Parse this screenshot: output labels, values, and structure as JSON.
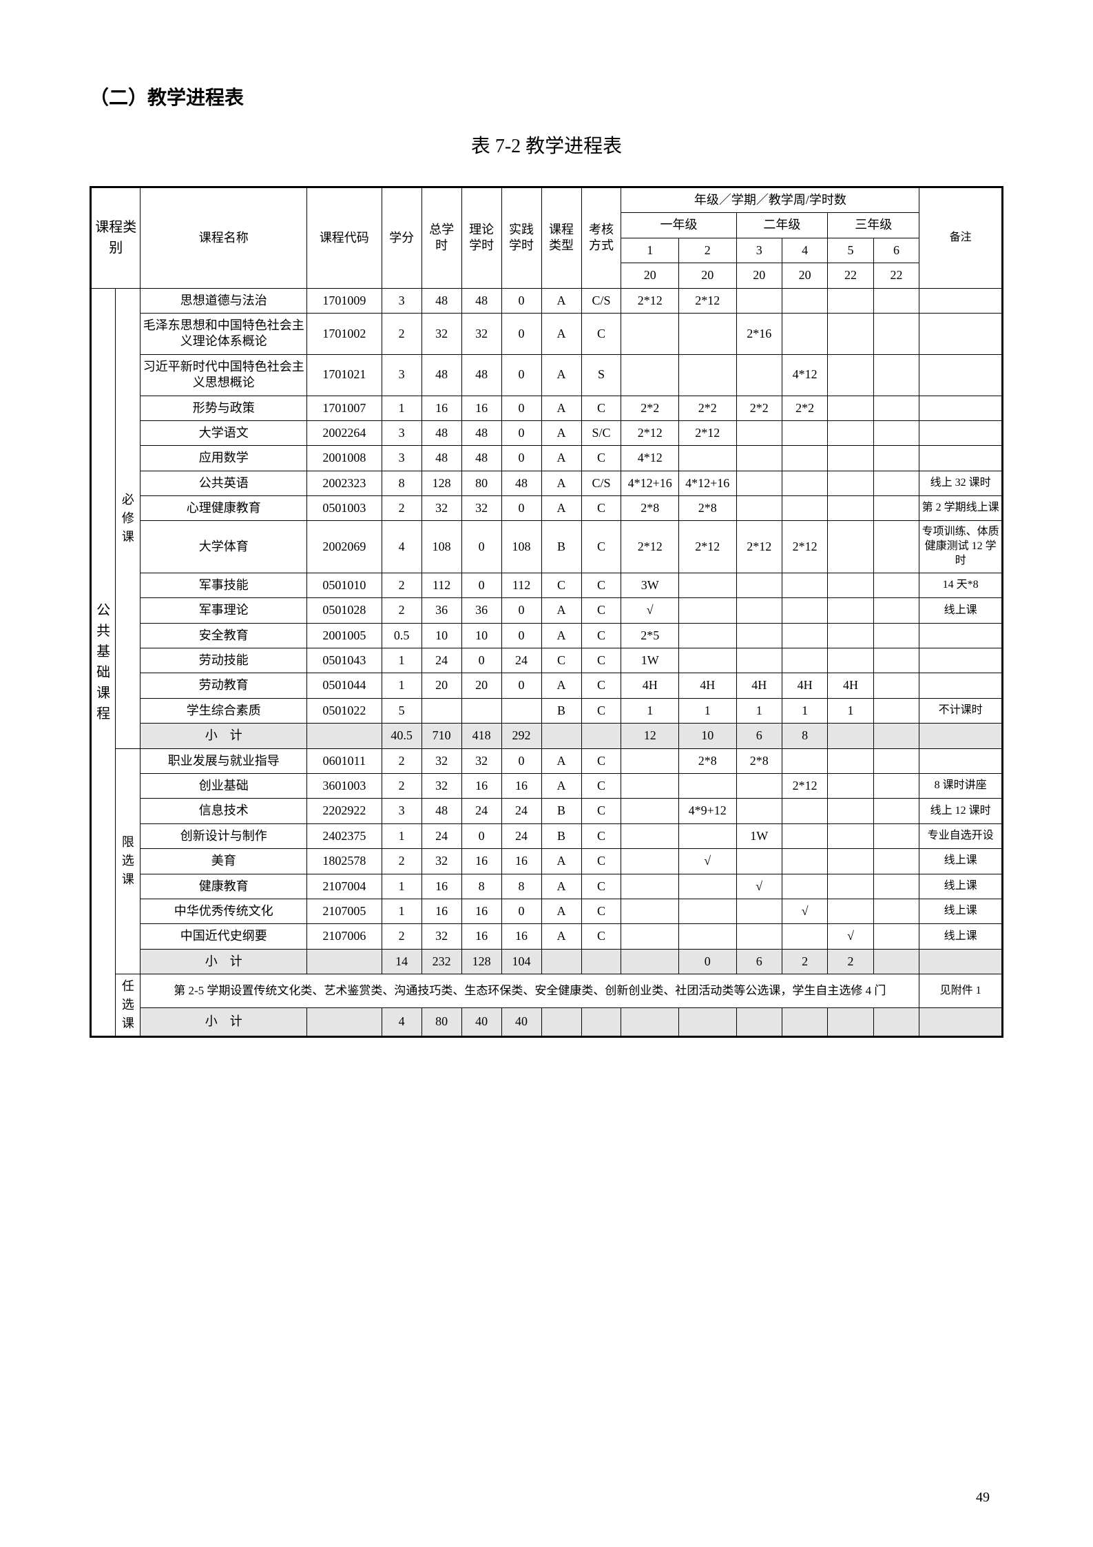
{
  "section_heading": "（二）教学进程表",
  "table_title": "表 7-2 教学进程表",
  "page_number": "49",
  "header": {
    "course_category": "课程类别",
    "course_name": "课程名称",
    "course_code": "课程代码",
    "credit": "学分",
    "total_hours": "总学时",
    "theory_hours": "理论学时",
    "practice_hours": "实践学时",
    "course_type": "课程类型",
    "assess_mode": "考核方式",
    "grade_header": "年级／学期／教学周/学时数",
    "year1": "一年级",
    "year2": "二年级",
    "year3": "三年级",
    "remark": "备注",
    "semesters": [
      "1",
      "2",
      "3",
      "4",
      "5",
      "6"
    ],
    "weeks": [
      "20",
      "20",
      "20",
      "20",
      "22",
      "22"
    ]
  },
  "cat1": "公共基础课程",
  "subcat_required": "必修课",
  "subcat_limited": "限选课",
  "subcat_optional": "任选课",
  "required_rows": [
    {
      "name": "思想道德与法治",
      "code": "1701009",
      "credit": "3",
      "total": "48",
      "theory": "48",
      "practice": "0",
      "type": "A",
      "assess": "C/S",
      "s1": "2*12",
      "s2": "2*12",
      "s3": "",
      "s4": "",
      "s5": "",
      "s6": "",
      "note": ""
    },
    {
      "name": "毛泽东思想和中国特色社会主义理论体系概论",
      "code": "1701002",
      "credit": "2",
      "total": "32",
      "theory": "32",
      "practice": "0",
      "type": "A",
      "assess": "C",
      "s1": "",
      "s2": "",
      "s3": "2*16",
      "s4": "",
      "s5": "",
      "s6": "",
      "note": ""
    },
    {
      "name": "习近平新时代中国特色社会主义思想概论",
      "code": "1701021",
      "credit": "3",
      "total": "48",
      "theory": "48",
      "practice": "0",
      "type": "A",
      "assess": "S",
      "s1": "",
      "s2": "",
      "s3": "",
      "s4": "4*12",
      "s5": "",
      "s6": "",
      "note": ""
    },
    {
      "name": "形势与政策",
      "code": "1701007",
      "credit": "1",
      "total": "16",
      "theory": "16",
      "practice": "0",
      "type": "A",
      "assess": "C",
      "s1": "2*2",
      "s2": "2*2",
      "s3": "2*2",
      "s4": "2*2",
      "s5": "",
      "s6": "",
      "note": ""
    },
    {
      "name": "大学语文",
      "code": "2002264",
      "credit": "3",
      "total": "48",
      "theory": "48",
      "practice": "0",
      "type": "A",
      "assess": "S/C",
      "s1": "2*12",
      "s2": "2*12",
      "s3": "",
      "s4": "",
      "s5": "",
      "s6": "",
      "note": ""
    },
    {
      "name": "应用数学",
      "code": "2001008",
      "credit": "3",
      "total": "48",
      "theory": "48",
      "practice": "0",
      "type": "A",
      "assess": "C",
      "s1": "4*12",
      "s2": "",
      "s3": "",
      "s4": "",
      "s5": "",
      "s6": "",
      "note": ""
    },
    {
      "name": "公共英语",
      "code": "2002323",
      "credit": "8",
      "total": "128",
      "theory": "80",
      "practice": "48",
      "type": "A",
      "assess": "C/S",
      "s1": "4*12+16",
      "s2": "4*12+16",
      "s3": "",
      "s4": "",
      "s5": "",
      "s6": "",
      "note": "线上 32 课时"
    },
    {
      "name": "心理健康教育",
      "code": "0501003",
      "credit": "2",
      "total": "32",
      "theory": "32",
      "practice": "0",
      "type": "A",
      "assess": "C",
      "s1": "2*8",
      "s2": "2*8",
      "s3": "",
      "s4": "",
      "s5": "",
      "s6": "",
      "note": "第 2 学期线上课"
    },
    {
      "name": "大学体育",
      "code": "2002069",
      "credit": "4",
      "total": "108",
      "theory": "0",
      "practice": "108",
      "type": "B",
      "assess": "C",
      "s1": "2*12",
      "s2": "2*12",
      "s3": "2*12",
      "s4": "2*12",
      "s5": "",
      "s6": "",
      "note": "专项训练、体质健康测试 12 学时"
    },
    {
      "name": "军事技能",
      "code": "0501010",
      "credit": "2",
      "total": "112",
      "theory": "0",
      "practice": "112",
      "type": "C",
      "assess": "C",
      "s1": "3W",
      "s2": "",
      "s3": "",
      "s4": "",
      "s5": "",
      "s6": "",
      "note": "14 天*8"
    },
    {
      "name": "军事理论",
      "code": "0501028",
      "credit": "2",
      "total": "36",
      "theory": "36",
      "practice": "0",
      "type": "A",
      "assess": "C",
      "s1": "√",
      "s2": "",
      "s3": "",
      "s4": "",
      "s5": "",
      "s6": "",
      "note": "线上课"
    },
    {
      "name": "安全教育",
      "code": "2001005",
      "credit": "0.5",
      "total": "10",
      "theory": "10",
      "practice": "0",
      "type": "A",
      "assess": "C",
      "s1": "2*5",
      "s2": "",
      "s3": "",
      "s4": "",
      "s5": "",
      "s6": "",
      "note": ""
    },
    {
      "name": "劳动技能",
      "code": "0501043",
      "credit": "1",
      "total": "24",
      "theory": "0",
      "practice": "24",
      "type": "C",
      "assess": "C",
      "s1": "1W",
      "s2": "",
      "s3": "",
      "s4": "",
      "s5": "",
      "s6": "",
      "note": ""
    },
    {
      "name": "劳动教育",
      "code": "0501044",
      "credit": "1",
      "total": "20",
      "theory": "20",
      "practice": "0",
      "type": "A",
      "assess": "C",
      "s1": "4H",
      "s2": "4H",
      "s3": "4H",
      "s4": "4H",
      "s5": "4H",
      "s6": "",
      "note": ""
    },
    {
      "name": "学生综合素质",
      "code": "0501022",
      "credit": "5",
      "total": "",
      "theory": "",
      "practice": "",
      "type": "B",
      "assess": "C",
      "s1": "1",
      "s2": "1",
      "s3": "1",
      "s4": "1",
      "s5": "1",
      "s6": "",
      "note": "不计课时"
    }
  ],
  "required_subtotal": {
    "label": "小　计",
    "credit": "40.5",
    "total": "710",
    "theory": "418",
    "practice": "292",
    "s1": "12",
    "s2": "10",
    "s3": "6",
    "s4": "8"
  },
  "limited_rows": [
    {
      "name": "职业发展与就业指导",
      "code": "0601011",
      "credit": "2",
      "total": "32",
      "theory": "32",
      "practice": "0",
      "type": "A",
      "assess": "C",
      "s1": "",
      "s2": "2*8",
      "s3": "2*8",
      "s4": "",
      "s5": "",
      "s6": "",
      "note": ""
    },
    {
      "name": "创业基础",
      "code": "3601003",
      "credit": "2",
      "total": "32",
      "theory": "16",
      "practice": "16",
      "type": "A",
      "assess": "C",
      "s1": "",
      "s2": "",
      "s3": "",
      "s4": "2*12",
      "s5": "",
      "s6": "",
      "note": "8 课时讲座"
    },
    {
      "name": "信息技术",
      "code": "2202922",
      "credit": "3",
      "total": "48",
      "theory": "24",
      "practice": "24",
      "type": "B",
      "assess": "C",
      "s1": "",
      "s2": "4*9+12",
      "s3": "",
      "s4": "",
      "s5": "",
      "s6": "",
      "note": "线上 12 课时"
    },
    {
      "name": "创新设计与制作",
      "code": "2402375",
      "credit": "1",
      "total": "24",
      "theory": "0",
      "practice": "24",
      "type": "B",
      "assess": "C",
      "s1": "",
      "s2": "",
      "s3": "1W",
      "s4": "",
      "s5": "",
      "s6": "",
      "note": "专业自选开设"
    },
    {
      "name": "美育",
      "code": "1802578",
      "credit": "2",
      "total": "32",
      "theory": "16",
      "practice": "16",
      "type": "A",
      "assess": "C",
      "s1": "",
      "s2": "√",
      "s3": "",
      "s4": "",
      "s5": "",
      "s6": "",
      "note": "线上课"
    },
    {
      "name": "健康教育",
      "code": "2107004",
      "credit": "1",
      "total": "16",
      "theory": "8",
      "practice": "8",
      "type": "A",
      "assess": "C",
      "s1": "",
      "s2": "",
      "s3": "√",
      "s4": "",
      "s5": "",
      "s6": "",
      "note": "线上课"
    },
    {
      "name": "中华优秀传统文化",
      "code": "2107005",
      "credit": "1",
      "total": "16",
      "theory": "16",
      "practice": "0",
      "type": "A",
      "assess": "C",
      "s1": "",
      "s2": "",
      "s3": "",
      "s4": "√",
      "s5": "",
      "s6": "",
      "note": "线上课"
    },
    {
      "name": "中国近代史纲要",
      "code": "2107006",
      "credit": "2",
      "total": "32",
      "theory": "16",
      "practice": "16",
      "type": "A",
      "assess": "C",
      "s1": "",
      "s2": "",
      "s3": "",
      "s4": "",
      "s5": "√",
      "s6": "",
      "note": "线上课"
    }
  ],
  "limited_subtotal": {
    "label": "小　计",
    "credit": "14",
    "total": "232",
    "theory": "128",
    "practice": "104",
    "s2": "0",
    "s3": "6",
    "s4": "2",
    "s5": "2"
  },
  "optional": {
    "merged_text": "第 2-5 学期设置传统文化类、艺术鉴赏类、沟通技巧类、生态环保类、安全健康类、创新创业类、社团活动类等公选课，学生自主选修 4 门",
    "note": "见附件 1",
    "subtotal": {
      "label": "小　计",
      "credit": "4",
      "total": "80",
      "theory": "40",
      "practice": "40"
    }
  },
  "colors": {
    "subtotal_bg": "#e5e5e5",
    "border": "#000000",
    "background": "#ffffff"
  }
}
